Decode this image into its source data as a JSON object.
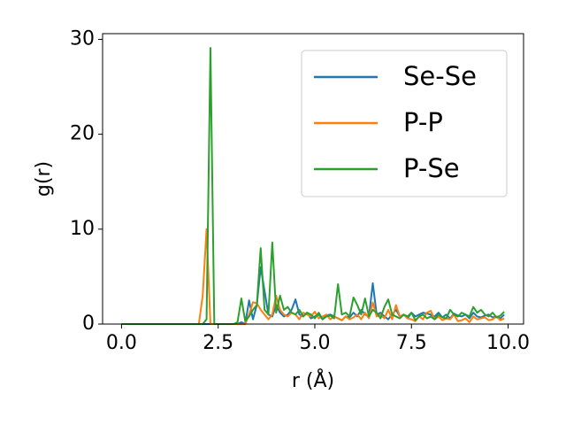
{
  "chart_data": {
    "type": "line",
    "xlabel": "r (Å)",
    "ylabel": "g(r)",
    "xlim": [
      -0.49,
      10.4
    ],
    "ylim": [
      0,
      30.6
    ],
    "xticks": [
      {
        "value": 0,
        "label": "0.0"
      },
      2.5,
      {
        "value": 5,
        "label": "5.0"
      },
      7.5,
      {
        "value": 10,
        "label": "10.0"
      }
    ],
    "yticks": [
      0,
      10,
      20,
      30
    ],
    "legend": "upper right",
    "x": [
      0,
      0.1,
      0.2,
      0.3,
      0.4,
      0.5,
      0.6,
      0.7,
      0.8,
      0.9,
      1,
      1.1,
      1.2,
      1.3,
      1.4,
      1.5,
      1.6,
      1.7,
      1.8,
      1.9,
      2,
      2.1,
      2.2,
      2.3,
      2.4,
      2.5,
      2.6,
      2.7,
      2.8,
      2.9,
      3,
      3.1,
      3.2,
      3.3,
      3.4,
      3.5,
      3.6,
      3.7,
      3.8,
      3.9,
      4,
      4.1,
      4.2,
      4.3,
      4.4,
      4.5,
      4.6,
      4.7,
      4.8,
      4.9,
      5,
      5.1,
      5.2,
      5.3,
      5.4,
      5.5,
      5.6,
      5.7,
      5.8,
      5.9,
      6,
      6.1,
      6.2,
      6.3,
      6.4,
      6.5,
      6.6,
      6.7,
      6.8,
      6.9,
      7,
      7.1,
      7.2,
      7.3,
      7.4,
      7.5,
      7.6,
      7.7,
      7.8,
      7.9,
      8,
      8.1,
      8.2,
      8.3,
      8.4,
      8.5,
      8.6,
      8.7,
      8.8,
      8.9,
      9,
      9.1,
      9.2,
      9.3,
      9.4,
      9.5,
      9.6,
      9.7,
      9.8,
      9.9
    ],
    "series": [
      {
        "name": "Se-Se",
        "color": "#1f77b4",
        "values": [
          0,
          0,
          0,
          0,
          0,
          0,
          0,
          0,
          0,
          0,
          0,
          0,
          0,
          0,
          0,
          0,
          0,
          0,
          0,
          0,
          0,
          0,
          0,
          0,
          0,
          0,
          0,
          0,
          0,
          0,
          0,
          0.2,
          0,
          2.5,
          0.5,
          2,
          6,
          3.5,
          1,
          0.8,
          2,
          1.2,
          0.8,
          1,
          1.5,
          2.6,
          1,
          0.8,
          1.2,
          0.6,
          0.8,
          1,
          0.5,
          0.9,
          1,
          0.8,
          0.6,
          0.4,
          0.8,
          0.7,
          1.2,
          0.8,
          1.5,
          1,
          0.8,
          4.3,
          1,
          1.2,
          0.8,
          0.5,
          1,
          1.5,
          0.8,
          1,
          0.6,
          1.2,
          0.8,
          1,
          1.2,
          1.1,
          1,
          0.8,
          1.2,
          0.7,
          1,
          0.6,
          1.1,
          0.9,
          0.8,
          1,
          0.6,
          1.2,
          0.8,
          0.7,
          0.9,
          1,
          0.7,
          0.8,
          0.6,
          1
        ]
      },
      {
        "name": "P-P",
        "color": "#ff7f0e",
        "values": [
          0,
          0,
          0,
          0,
          0,
          0,
          0,
          0,
          0,
          0,
          0,
          0,
          0,
          0,
          0,
          0,
          0,
          0,
          0,
          0,
          0,
          3,
          10,
          0,
          0,
          0,
          0,
          0,
          0,
          0,
          0,
          0,
          0,
          1,
          2.3,
          2.2,
          1.5,
          1,
          0.5,
          1,
          3,
          1.5,
          1,
          0.8,
          1.2,
          1,
          0.5,
          1.2,
          1,
          0.8,
          1.3,
          0.6,
          0.8,
          1,
          0.5,
          0.8,
          0.6,
          0.4,
          0.8,
          0.5,
          0.7,
          1,
          0.5,
          1.2,
          0.6,
          2.3,
          0.8,
          1,
          0.6,
          1.5,
          0.5,
          2,
          0.8,
          1,
          0.6,
          0.5,
          0.3,
          0.8,
          0.5,
          1.2,
          1.4,
          0.5,
          0.8,
          0.4,
          0.6,
          0.5,
          1,
          0.3,
          0.4,
          0.6,
          0.2,
          0.8,
          0.5,
          0.6,
          0.7,
          0.4,
          0.5,
          0.8,
          0.4,
          0.6
        ]
      },
      {
        "name": "P-Se",
        "color": "#2ca02c",
        "values": [
          0,
          0,
          0,
          0,
          0,
          0,
          0,
          0,
          0,
          0,
          0,
          0,
          0,
          0,
          0,
          0,
          0,
          0,
          0,
          0,
          0,
          0,
          0.5,
          29.1,
          0,
          0,
          0,
          0,
          0,
          0,
          0.2,
          2.7,
          0.3,
          0.8,
          1.5,
          2,
          8,
          1.5,
          1,
          8.6,
          1.2,
          3,
          1.5,
          1.8,
          1.2,
          1,
          1.5,
          0.8,
          1.2,
          1,
          0.6,
          1.2,
          0.5,
          0.8,
          0.9,
          0.6,
          4.2,
          1,
          1.2,
          0.8,
          2.8,
          2,
          1,
          2.7,
          0.8,
          1.5,
          1.2,
          0.6,
          1.8,
          2.6,
          1,
          0.8,
          0.6,
          1,
          0.8,
          1.2,
          0.4,
          0.8,
          1,
          0.6,
          0.8,
          0.5,
          1,
          0.7,
          0.6,
          1.5,
          1,
          0.8,
          1.2,
          1,
          0.8,
          1.8,
          1.2,
          1.5,
          1,
          0.8,
          1.2,
          0.7,
          0.9,
          1.3
        ]
      }
    ]
  }
}
